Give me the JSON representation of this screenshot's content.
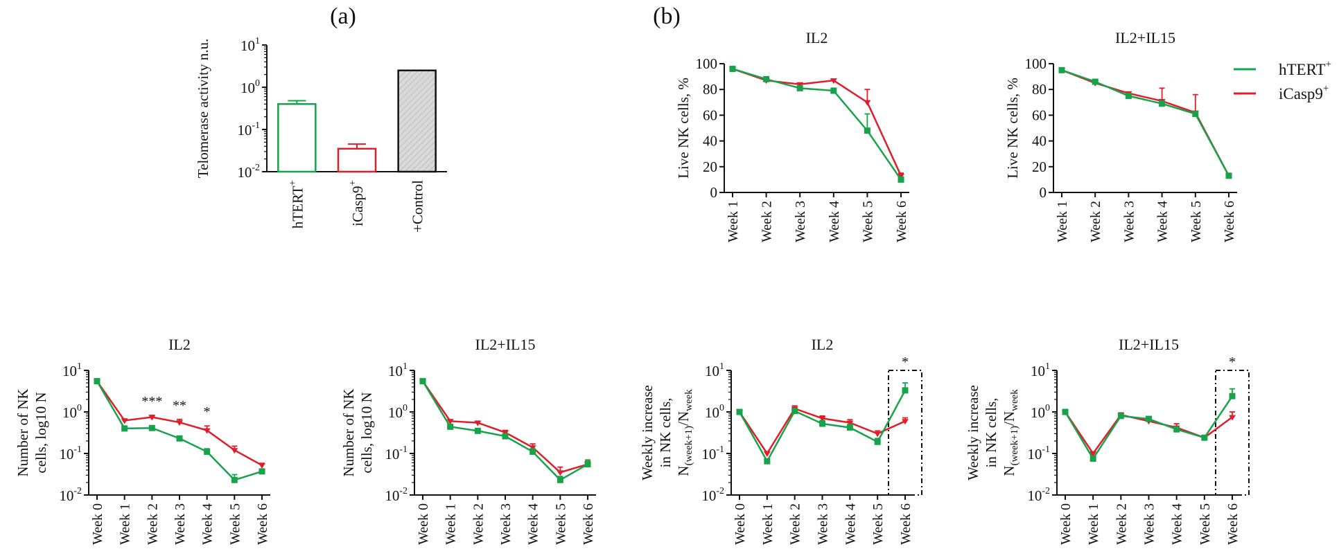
{
  "colors": {
    "hTERT": "#16a34a",
    "iCasp9": "#e11d2a",
    "axis": "#111111",
    "control_fill": "#d9d9d9"
  },
  "panel_labels": {
    "a": "(a)",
    "b": "(b)"
  },
  "legend": [
    {
      "label": "hTERT",
      "sup": "+",
      "color": "#16a34a"
    },
    {
      "label": "iCasp9",
      "sup": "+",
      "color": "#e11d2a"
    }
  ],
  "chart_data": [
    {
      "id": "telomerase",
      "type": "bar",
      "title": "",
      "ylabel": "Telomerase activity n.u.",
      "yscale": "log",
      "ylim_exp": [
        -2,
        1
      ],
      "categories": [
        {
          "label": "hTERT",
          "sup": "+"
        },
        {
          "label": "iCasp9",
          "sup": "+"
        },
        {
          "label": "+Control",
          "sup": ""
        }
      ],
      "values": [
        0.4,
        0.035,
        2.5
      ],
      "errors": [
        0.08,
        0.01,
        0
      ],
      "bar_colors": [
        "#16a34a",
        "#e11d2a",
        "#111111"
      ]
    },
    {
      "id": "live_il2",
      "type": "line",
      "title": "IL2",
      "ylabel": "Live NK cells, %",
      "yscale": "linear",
      "ylim": [
        0,
        100
      ],
      "yticks": [
        0,
        20,
        40,
        60,
        80,
        100
      ],
      "categories": [
        "Week 1",
        "Week 2",
        "Week 3",
        "Week 4",
        "Week 5",
        "Week 6"
      ],
      "series": [
        {
          "name": "iCasp9+",
          "color": "#e11d2a",
          "values": [
            96,
            87,
            84,
            87,
            70,
            13
          ],
          "errors": [
            1,
            1,
            1,
            1,
            10,
            2
          ]
        },
        {
          "name": "hTERT+",
          "color": "#16a34a",
          "values": [
            96,
            88,
            81,
            79,
            48,
            10
          ],
          "errors": [
            1,
            1,
            1,
            2,
            13,
            2
          ]
        }
      ],
      "annotations": []
    },
    {
      "id": "live_il15",
      "type": "line",
      "title": "IL2+IL15",
      "ylabel": "Live NK cells, %",
      "yscale": "linear",
      "ylim": [
        0,
        100
      ],
      "yticks": [
        0,
        20,
        40,
        60,
        80,
        100
      ],
      "categories": [
        "Week 1",
        "Week 2",
        "Week 3",
        "Week 4",
        "Week 5",
        "Week 6"
      ],
      "series": [
        {
          "name": "iCasp9+",
          "color": "#e11d2a",
          "values": [
            95,
            85,
            77,
            71,
            62,
            13
          ],
          "errors": [
            1,
            1,
            1,
            10,
            14,
            1
          ]
        },
        {
          "name": "hTERT+",
          "color": "#16a34a",
          "values": [
            95,
            86,
            75,
            69,
            61,
            13
          ],
          "errors": [
            1,
            1,
            1,
            2,
            2,
            1
          ]
        }
      ],
      "annotations": []
    },
    {
      "id": "number_il2",
      "type": "line",
      "title": "IL2",
      "ylabel": [
        "Number of NK",
        "cells, log10 N"
      ],
      "yscale": "log",
      "ylim_exp": [
        -2,
        1
      ],
      "categories": [
        "Week 0",
        "Week 1",
        "Week 2",
        "Week 3",
        "Week 4",
        "Week 5",
        "Week 6"
      ],
      "series": [
        {
          "name": "iCasp9+",
          "color": "#e11d2a",
          "values": [
            5.5,
            0.62,
            0.75,
            0.56,
            0.36,
            0.12,
            0.052
          ],
          "errors": [
            0.5,
            0.06,
            0.08,
            0.1,
            0.1,
            0.03,
            0.006
          ]
        },
        {
          "name": "hTERT+",
          "color": "#16a34a",
          "values": [
            5.5,
            0.4,
            0.41,
            0.23,
            0.11,
            0.023,
            0.037
          ],
          "errors": [
            0.5,
            0.03,
            0.03,
            0.02,
            0.02,
            0.008,
            0.005
          ]
        }
      ],
      "annotations": [
        {
          "text": "***",
          "index": 2
        },
        {
          "text": "**",
          "index": 3
        },
        {
          "text": "*",
          "index": 4
        }
      ]
    },
    {
      "id": "number_il15",
      "type": "line",
      "title": "IL2+IL15",
      "ylabel": [
        "Number of NK",
        "cells, log10 N"
      ],
      "yscale": "log",
      "ylim_exp": [
        -2,
        1
      ],
      "categories": [
        "Week 0",
        "Week 1",
        "Week 2",
        "Week 3",
        "Week 4",
        "Week 5",
        "Week 6"
      ],
      "series": [
        {
          "name": "iCasp9+",
          "color": "#e11d2a",
          "values": [
            5.5,
            0.6,
            0.55,
            0.32,
            0.14,
            0.035,
            0.055
          ],
          "errors": [
            0.5,
            0.05,
            0.05,
            0.04,
            0.03,
            0.012,
            0.01
          ]
        },
        {
          "name": "hTERT+",
          "color": "#16a34a",
          "values": [
            5.5,
            0.44,
            0.35,
            0.26,
            0.11,
            0.023,
            0.055
          ],
          "errors": [
            0.5,
            0.04,
            0.03,
            0.03,
            0.02,
            0.005,
            0.015
          ]
        }
      ],
      "annotations": []
    },
    {
      "id": "weekly_il2",
      "type": "line",
      "title": "IL2",
      "ylabel": [
        "Weekly increase",
        "in NK cells,",
        "N(week+1)/Nweek"
      ],
      "yscale": "log",
      "ylim_exp": [
        -2,
        1
      ],
      "categories": [
        "Week 0",
        "Week 1",
        "Week 2",
        "Week 3",
        "Week 4",
        "Week 5",
        "Week 6"
      ],
      "series": [
        {
          "name": "iCasp9+",
          "color": "#e11d2a",
          "values": [
            1.0,
            0.1,
            1.2,
            0.7,
            0.55,
            0.3,
            0.6
          ],
          "errors": [
            0.05,
            0.01,
            0.2,
            0.1,
            0.1,
            0.05,
            0.12
          ]
        },
        {
          "name": "hTERT+",
          "color": "#16a34a",
          "values": [
            1.0,
            0.065,
            1.05,
            0.52,
            0.42,
            0.19,
            3.3
          ],
          "errors": [
            0.05,
            0.008,
            0.15,
            0.1,
            0.08,
            0.04,
            1.7
          ]
        }
      ],
      "annotations": [
        {
          "text": "*",
          "index": 6
        }
      ],
      "highlight_last": true
    },
    {
      "id": "weekly_il15",
      "type": "line",
      "title": "IL2+IL15",
      "ylabel": [
        "Weekly increase",
        "in NK cells,",
        "N(week+1)/Nweek"
      ],
      "yscale": "log",
      "ylim_exp": [
        -2,
        1
      ],
      "categories": [
        "Week 0",
        "Week 1",
        "Week 2",
        "Week 3",
        "Week 4",
        "Week 5",
        "Week 6"
      ],
      "series": [
        {
          "name": "iCasp9+",
          "color": "#e11d2a",
          "values": [
            1.0,
            0.1,
            0.85,
            0.6,
            0.42,
            0.24,
            0.75
          ],
          "errors": [
            0.05,
            0.01,
            0.1,
            0.1,
            0.1,
            0.03,
            0.25
          ]
        },
        {
          "name": "hTERT+",
          "color": "#16a34a",
          "values": [
            1.0,
            0.075,
            0.8,
            0.68,
            0.38,
            0.24,
            2.4
          ],
          "errors": [
            0.05,
            0.008,
            0.1,
            0.08,
            0.06,
            0.03,
            1.2
          ]
        }
      ],
      "annotations": [
        {
          "text": "*",
          "index": 6
        }
      ],
      "highlight_last": true
    }
  ]
}
